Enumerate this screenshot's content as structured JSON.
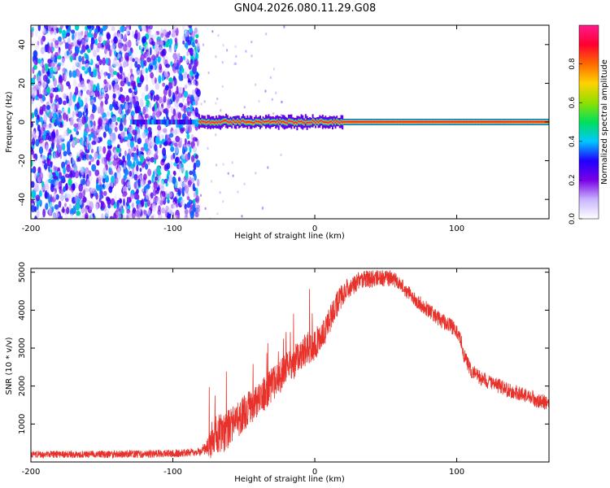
{
  "page_title": "GN04.2026.080.11.29.G08",
  "chart_data": [
    {
      "type": "heatmap",
      "title": "GN04.2026.080.11.29.G08",
      "xlabel": "Height of straight line (km)",
      "ylabel": "Frequency (Hz)",
      "xlim": [
        -200,
        165
      ],
      "ylim": [
        -50,
        50
      ],
      "x_ticks": [
        -200,
        -100,
        0,
        100
      ],
      "y_ticks": [
        40,
        20,
        0,
        -20,
        -40
      ],
      "grid": false,
      "description_of_field": {
        "noise_region_x": [
          -200,
          -82
        ],
        "noise_amplitude_range": [
          0.0,
          0.45
        ],
        "carrier_frequency_hz": 0,
        "carrier_start_x": -130,
        "carrier_peak_amplitude": 1.0,
        "weak_carrier_x": [
          -130,
          -82
        ],
        "weak_carrier_amplitude": 0.3
      },
      "colorbar": {
        "label": "Normalized spectral amplitude",
        "range": [
          0.0,
          1.0
        ],
        "ticks": [
          0.0,
          0.2,
          0.4,
          0.6,
          0.8
        ],
        "tick_labels": [
          "0.0",
          "0.2",
          "0.4",
          "0.6",
          "0.8"
        ],
        "colors": [
          "#ffffff",
          "#c8b4ff",
          "#7a00e6",
          "#1f00ff",
          "#00c8ff",
          "#00e05a",
          "#90e000",
          "#ffd200",
          "#ff6a00",
          "#ff0030",
          "#ff1a8c"
        ]
      }
    },
    {
      "type": "line",
      "xlabel": "Height of straight line (km)",
      "ylabel": "SNR (10 * v/v)",
      "xlim": [
        -200,
        165
      ],
      "ylim": [
        0,
        5100
      ],
      "x_ticks": [
        -200,
        -100,
        0,
        100
      ],
      "y_ticks": [
        1000,
        2000,
        3000,
        4000,
        5000
      ],
      "grid": false,
      "color": "#e8312a",
      "envelope": {
        "x": [
          -200,
          -150,
          -100,
          -85,
          -80,
          -75,
          -70,
          -65,
          -60,
          -55,
          -50,
          -45,
          -40,
          -35,
          -30,
          -25,
          -20,
          -15,
          -10,
          -5,
          0,
          5,
          10,
          15,
          20,
          25,
          30,
          35,
          40,
          45,
          50,
          55,
          60,
          65,
          70,
          75,
          80,
          85,
          90,
          95,
          100,
          103,
          105,
          110,
          115,
          120,
          125,
          130,
          135,
          140,
          145,
          150,
          155,
          160,
          165
        ],
        "y": [
          200,
          200,
          220,
          250,
          280,
          400,
          650,
          750,
          900,
          1050,
          1300,
          1450,
          1650,
          1800,
          2050,
          2200,
          2500,
          2600,
          2850,
          3000,
          3100,
          3300,
          3700,
          4100,
          4450,
          4620,
          4750,
          4800,
          4820,
          4830,
          4830,
          4850,
          4700,
          4500,
          4300,
          4150,
          4000,
          3850,
          3700,
          3600,
          3450,
          3200,
          2800,
          2400,
          2250,
          2150,
          2050,
          2000,
          1900,
          1850,
          1800,
          1750,
          1650,
          1600,
          1500
        ]
      },
      "noise_amplitude": {
        "x": [
          -200,
          -80,
          -70,
          -40,
          0,
          30,
          60,
          100,
          165
        ],
        "y": [
          90,
          110,
          550,
          450,
          420,
          250,
          200,
          200,
          200
        ]
      }
    }
  ]
}
